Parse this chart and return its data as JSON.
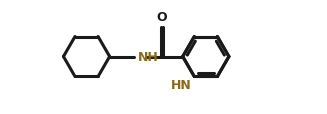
{
  "bg_color": "#ffffff",
  "line_color": "#1a1a1a",
  "nh_color": "#8B6914",
  "line_width": 2.2,
  "font_size": 9,
  "xlim": [
    0,
    7
  ],
  "ylim": [
    0,
    3.5
  ]
}
